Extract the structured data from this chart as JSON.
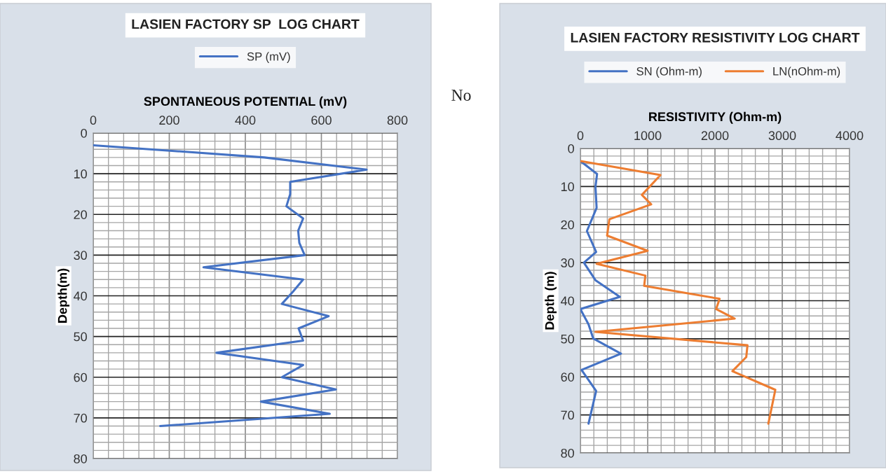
{
  "chart_data": [
    {
      "type": "line",
      "title": "LASIEN FACTORY SP  LOG CHART",
      "xlabel": "SPONTANEOUS POTENTIAL (mV)",
      "ylabel": "Depth(m)",
      "xlim": [
        0,
        800
      ],
      "xticks": [
        0,
        200,
        400,
        600,
        800
      ],
      "ylim": [
        80,
        0
      ],
      "yticks": [
        0,
        10,
        20,
        30,
        40,
        50,
        60,
        70,
        80
      ],
      "grid": true,
      "legend": "top",
      "marker": "none",
      "line_style": "solid",
      "annotations": [
        "No"
      ],
      "series": [
        {
          "name": "SP (mV)",
          "color": "#4472c4",
          "x": [
            0,
            450,
            719,
            518,
            518,
            508,
            552,
            539,
            542,
            556,
            290,
            552,
            525,
            496,
            619,
            540,
            552,
            324,
            552,
            496,
            638,
            441,
            622,
            176
          ],
          "values": [
            3,
            6,
            9,
            12,
            15,
            18,
            21,
            24,
            27,
            30,
            33,
            36,
            39,
            42,
            45,
            48,
            51,
            54,
            57,
            60,
            63,
            66,
            69,
            72
          ]
        }
      ]
    },
    {
      "type": "line",
      "title": "LASIEN FACTORY RESISTIVITY LOG CHART",
      "xlabel": "RESISTIVITY (Ohm-m)",
      "ylabel": "Depth (m)",
      "xlim": [
        0,
        4000
      ],
      "xticks": [
        0,
        1000,
        2000,
        3000,
        4000
      ],
      "ylim": [
        80,
        0
      ],
      "yticks": [
        0,
        10,
        20,
        30,
        40,
        50,
        60,
        70,
        80
      ],
      "grid": true,
      "legend": "top",
      "marker": "none",
      "line_style": "solid",
      "series": [
        {
          "name": "SN (Ohm-m)",
          "color": "#4472c4",
          "x": [
            0,
            248,
            224,
            241,
            97,
            234,
            52,
            224,
            586,
            0,
            121,
            190,
            603,
            17,
            234,
            121
          ],
          "values": [
            3.3,
            6.7,
            10.1,
            15.6,
            21.7,
            27.2,
            30.0,
            34.6,
            39.0,
            42.2,
            46.2,
            49.9,
            53.9,
            58.2,
            63.7,
            72.3
          ]
        },
        {
          "name": "LN(nOhm-m)",
          "color": "#ed7d31",
          "x": [
            0,
            1190,
            914,
            1052,
            431,
            397,
            1000,
            241,
            966,
            948,
            2069,
            2017,
            2293,
            224,
            2483,
            2465,
            2259,
            2897,
            2793
          ],
          "values": [
            3.3,
            7.0,
            12.2,
            14.7,
            18.6,
            22.9,
            26.9,
            30.3,
            33.4,
            36.1,
            39.5,
            42.2,
            44.7,
            48.2,
            51.7,
            54.8,
            58.5,
            63.4,
            72.3
          ]
        }
      ]
    }
  ]
}
